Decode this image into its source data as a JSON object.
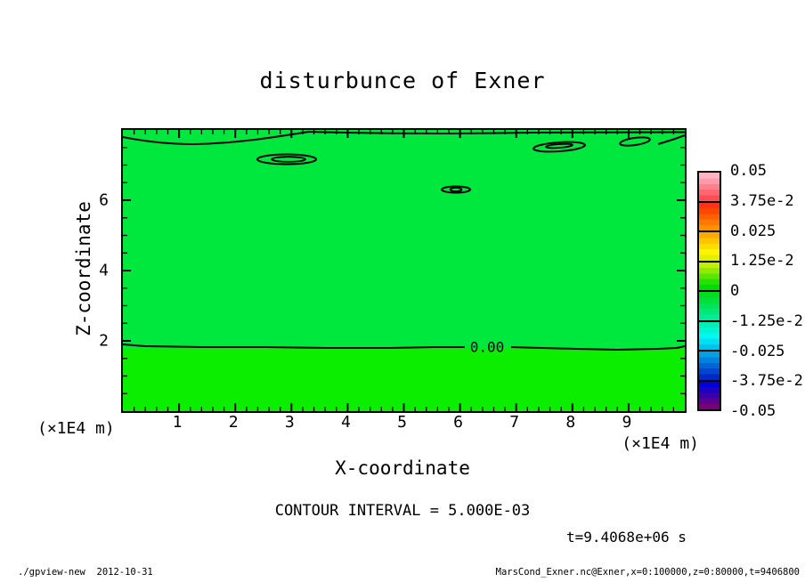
{
  "title": "disturbunce of Exner",
  "plot": {
    "contour_label": "0.00",
    "fill_upper": "#00e83e",
    "fill_lower": "#0cee00",
    "x_axis": {
      "label": "X-coordinate",
      "unit": "(×1E4 m)",
      "ticks": [
        "1",
        "2",
        "3",
        "4",
        "5",
        "6",
        "7",
        "8",
        "9"
      ]
    },
    "y_axis": {
      "label": "Z-coordinate",
      "unit": "(×1E4 m)",
      "ticks": [
        "2",
        "4",
        "6"
      ]
    }
  },
  "colorbar": {
    "labels": [
      "0.05",
      "3.75e-2",
      "0.025",
      "1.25e-2",
      "0",
      "-1.25e-2",
      "-0.025",
      "-3.75e-2",
      "-0.05"
    ],
    "segments": [
      [
        "#ffb4c3",
        "#ff9aa8",
        "#ff808c",
        "#ff6670",
        "#ff4c55"
      ],
      [
        "#ff3219",
        "#ff4600",
        "#ff5f00",
        "#ff7800",
        "#ff9100"
      ],
      [
        "#ffaa00",
        "#ffc300",
        "#ffdc00",
        "#fff500",
        "#e1f000"
      ],
      [
        "#bef000",
        "#8ceb00",
        "#5ae600",
        "#28e100",
        "#00dc00"
      ],
      [
        "#00dc1e",
        "#00e03c",
        "#00e45a",
        "#00e878",
        "#00ec96"
      ],
      [
        "#00f0b4",
        "#00f4d2",
        "#00f8f0",
        "#00dff4",
        "#00c3ec"
      ],
      [
        "#00a0e6",
        "#0082de",
        "#0064d6",
        "#0046ce",
        "#0028c6"
      ],
      [
        "#0000dc",
        "#1e00c3",
        "#3c00aa",
        "#5a0091",
        "#780078"
      ]
    ]
  },
  "annotations": {
    "contour_interval": "CONTOUR INTERVAL = 5.000E-03",
    "time": "t=9.4068e+06 s"
  },
  "footer": {
    "left": "./gpview-new  2012-10-31",
    "right": "MarsCond_Exner.nc@Exner,x=0:100000,z=0:80000,t=9406800"
  },
  "chart_data": {
    "type": "heatmap",
    "title": "disturbunce of Exner",
    "xlabel": "X-coordinate",
    "ylabel": "Z-coordinate",
    "x_unit": "(×1E4 m)",
    "y_unit": "(×1E4 m)",
    "xlim": [
      0,
      10
    ],
    "ylim": [
      0,
      8
    ],
    "x_ticks": [
      1,
      2,
      3,
      4,
      5,
      6,
      7,
      8,
      9
    ],
    "y_ticks": [
      2,
      4,
      6
    ],
    "contour_interval": 0.005,
    "colorbar_tick_values": [
      0.05,
      0.0375,
      0.025,
      0.0125,
      0,
      -0.0125,
      -0.025,
      -0.0375,
      -0.05
    ],
    "zero_contour": {
      "label": "0.00",
      "z_level": 1.8,
      "x_span": [
        0,
        10
      ],
      "label_x": 6.45
    },
    "upper_region": {
      "extent": "z ≈ 1.8 to 8",
      "approx_value": "between 0 and -1.25e-2",
      "color": "#00e83e"
    },
    "lower_region": {
      "extent": "z ≈ 0 to 1.8",
      "approx_value": "between 0 and +1.25e-2",
      "color": "#0cee00"
    },
    "closed_contours": [
      {
        "x": 2.9,
        "z": 7.15,
        "note": "elongated double contour"
      },
      {
        "x": 5.9,
        "z": 6.3,
        "note": "small double contour"
      },
      {
        "x": 7.75,
        "z": 7.5,
        "note": "elongated double contour near top"
      },
      {
        "x": 9.1,
        "z": 7.65,
        "note": "small contour near top edge"
      }
    ],
    "top_edge_contour": {
      "note": "contour enters left edge at z ≈ 7.8 and merges with top boundary near x ≈ 3.3"
    },
    "time_seconds": 9406800
  }
}
